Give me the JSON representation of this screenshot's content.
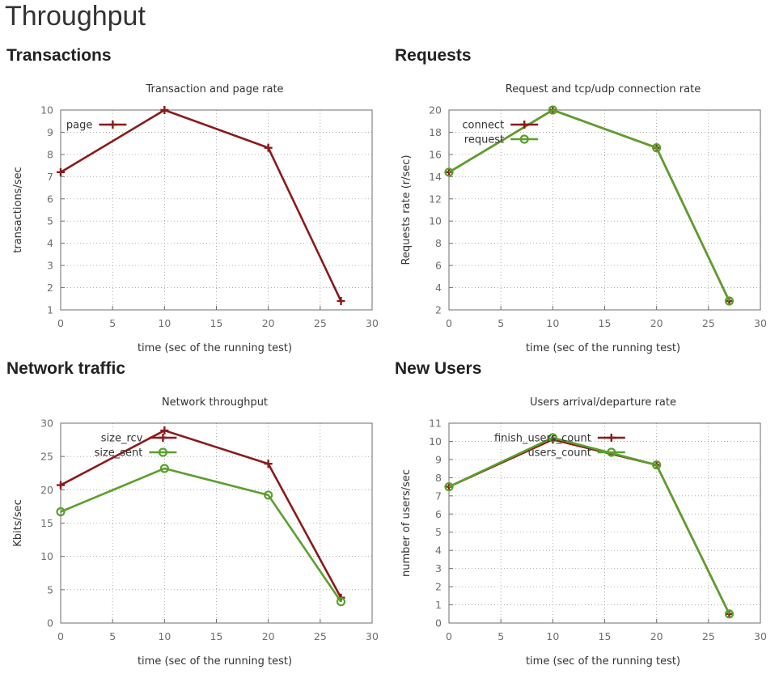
{
  "page_title": "Throughput",
  "colors": {
    "red": "#8b1a1a",
    "green": "#5aa02c",
    "grid": "#9a9a9a",
    "axis": "#6e6e6e",
    "text": "#333333"
  },
  "sections": [
    {
      "title": "Transactions"
    },
    {
      "title": "Requests"
    },
    {
      "title": "Network traffic"
    },
    {
      "title": "New Users"
    }
  ],
  "chart_data": [
    {
      "type": "line",
      "title": "Transaction and page rate",
      "xlabel": "time (sec of the running test)",
      "ylabel": "transactions/sec",
      "xlim": [
        0,
        30
      ],
      "ylim": [
        1,
        10
      ],
      "xticks": [
        0,
        5,
        10,
        15,
        20,
        25,
        30
      ],
      "yticks": [
        1,
        2,
        3,
        4,
        5,
        6,
        7,
        8,
        9,
        10
      ],
      "grid": true,
      "legend": "top-left",
      "series": [
        {
          "name": "page",
          "color": "#8b1a1a",
          "marker": "plus",
          "x": [
            0,
            10,
            20,
            27
          ],
          "y": [
            7.2,
            10.0,
            8.3,
            1.4
          ]
        }
      ]
    },
    {
      "type": "line",
      "title": "Request and tcp/udp connection rate",
      "xlabel": "time (sec of the running test)",
      "ylabel": "Requests rate (r/sec)",
      "xlim": [
        0,
        30
      ],
      "ylim": [
        2,
        20
      ],
      "xticks": [
        0,
        5,
        10,
        15,
        20,
        25,
        30
      ],
      "yticks": [
        2,
        4,
        6,
        8,
        10,
        12,
        14,
        16,
        18,
        20
      ],
      "grid": true,
      "legend": "top-left",
      "series": [
        {
          "name": "connect",
          "color": "#8b1a1a",
          "marker": "plus",
          "x": [
            0,
            10,
            20,
            27
          ],
          "y": [
            14.4,
            20.0,
            16.6,
            2.8
          ]
        },
        {
          "name": "request",
          "color": "#5aa02c",
          "marker": "circle",
          "x": [
            0,
            10,
            20,
            27
          ],
          "y": [
            14.4,
            20.0,
            16.6,
            2.8
          ]
        }
      ]
    },
    {
      "type": "line",
      "title": "Network throughput",
      "xlabel": "time (sec of the running test)",
      "ylabel": "Kbits/sec",
      "xlim": [
        0,
        30
      ],
      "ylim": [
        0,
        30
      ],
      "xticks": [
        0,
        5,
        10,
        15,
        20,
        25,
        30
      ],
      "yticks": [
        0,
        5,
        10,
        15,
        20,
        25,
        30
      ],
      "grid": true,
      "legend": "top-left",
      "series": [
        {
          "name": "size_rcv",
          "color": "#8b1a1a",
          "marker": "plus",
          "x": [
            0,
            10,
            20,
            27
          ],
          "y": [
            20.7,
            28.9,
            23.9,
            3.8
          ]
        },
        {
          "name": "size_sent",
          "color": "#5aa02c",
          "marker": "circle",
          "x": [
            0,
            10,
            20,
            27
          ],
          "y": [
            16.7,
            23.2,
            19.2,
            3.2
          ]
        }
      ]
    },
    {
      "type": "line",
      "title": "Users arrival/departure rate",
      "xlabel": "time (sec of the running test)",
      "ylabel": "number of users/sec",
      "xlim": [
        0,
        30
      ],
      "ylim": [
        0,
        11
      ],
      "xticks": [
        0,
        5,
        10,
        15,
        20,
        25,
        30
      ],
      "yticks": [
        0,
        1,
        2,
        3,
        4,
        5,
        6,
        7,
        8,
        9,
        10,
        11
      ],
      "grid": true,
      "legend": "top-center",
      "series": [
        {
          "name": "finish_users_count",
          "color": "#8b1a1a",
          "marker": "plus",
          "x": [
            0,
            10,
            20,
            27
          ],
          "y": [
            7.5,
            10.1,
            8.7,
            0.5
          ]
        },
        {
          "name": "users_count",
          "color": "#5aa02c",
          "marker": "circle",
          "x": [
            0,
            10,
            20,
            27
          ],
          "y": [
            7.5,
            10.2,
            8.7,
            0.5
          ]
        }
      ]
    }
  ]
}
